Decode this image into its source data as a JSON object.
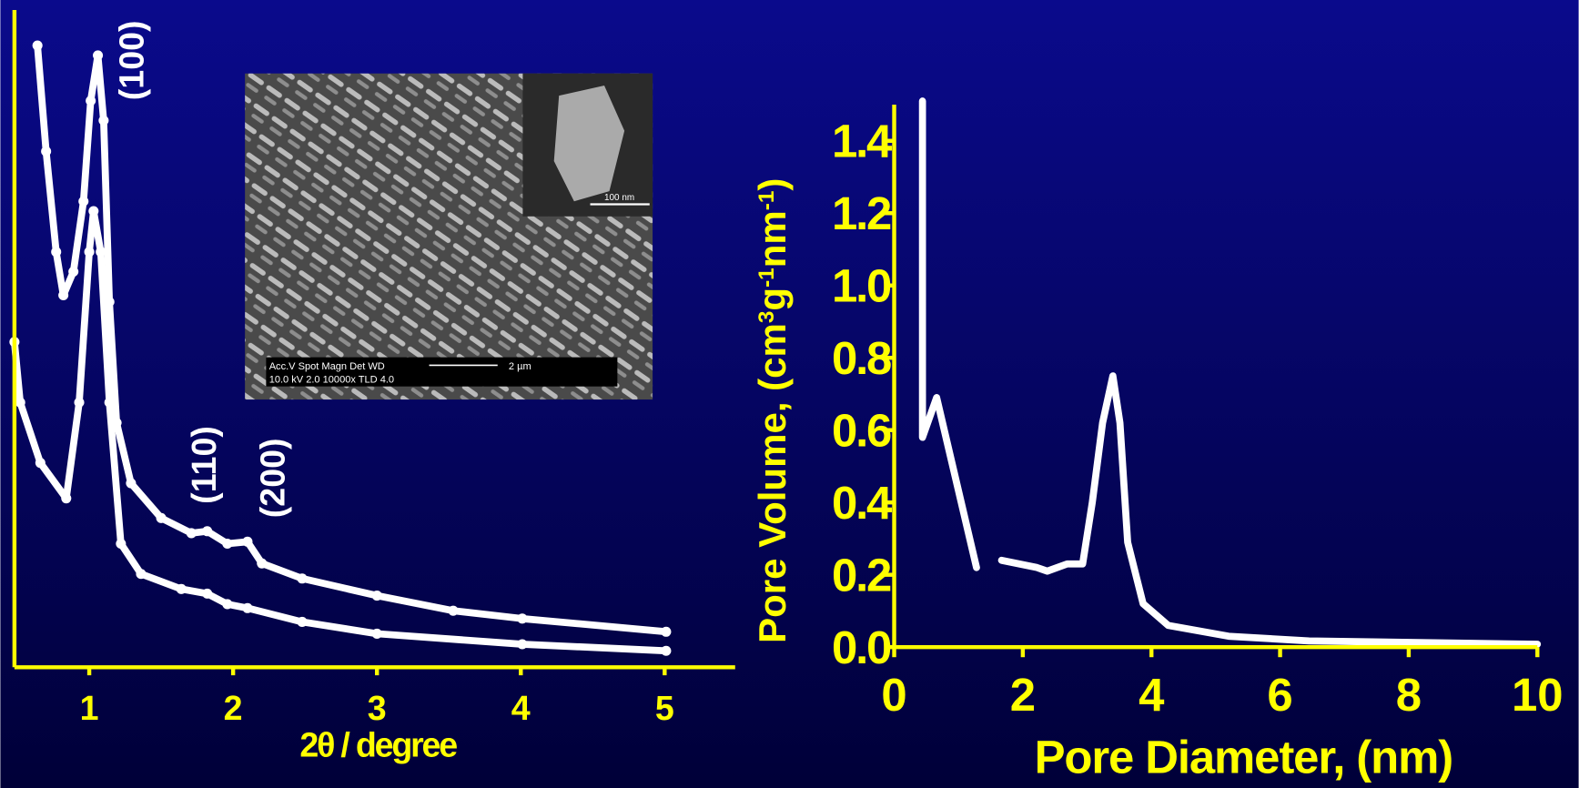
{
  "chart_data": [
    {
      "type": "line",
      "xlabel": "2θ / degree",
      "xlim": [
        0.48,
        5.49
      ],
      "xticks": [
        1,
        2,
        3,
        4,
        5
      ],
      "ylim": [
        0,
        100
      ],
      "annotations": [
        "(100)",
        "(110)",
        "(200)"
      ],
      "inset": {
        "info_line1": "Acc.V  Spot Magn    Det  WD",
        "info_line2": "10.0 kV 2.0  10000x  TLD  4.0",
        "scale_bar": "2 µm",
        "inset_scale_bar": "100 nm"
      },
      "markers": true,
      "series": [
        {
          "color": "#ffffff",
          "x": [
            0.64,
            0.7,
            0.77,
            0.82,
            0.89,
            0.96,
            1.01,
            1.06,
            1.1,
            1.14,
            1.19,
            1.29,
            1.5,
            1.71,
            1.82,
            1.96,
            2.1,
            2.2,
            2.48,
            3.0,
            3.53,
            4.01,
            5.01
          ],
          "values": [
            94.6,
            78.5,
            63.2,
            56.6,
            60.2,
            70.9,
            86.2,
            93.1,
            83.2,
            55.6,
            37.2,
            28.0,
            22.7,
            20.4,
            20.7,
            18.8,
            19.1,
            15.8,
            13.5,
            10.9,
            8.6,
            7.4,
            5.4
          ]
        },
        {
          "color": "#ffffff",
          "x": [
            0.48,
            0.52,
            0.66,
            0.84,
            0.93,
            1.0,
            1.03,
            1.08,
            1.14,
            1.22,
            1.36,
            1.64,
            1.82,
            1.96,
            2.1,
            2.48,
            3.0,
            4.01,
            5.01
          ],
          "values": [
            49.5,
            40.3,
            31.1,
            25.7,
            40.3,
            63.2,
            69.4,
            63.2,
            40.3,
            18.8,
            14.2,
            11.9,
            11.2,
            9.6,
            9.0,
            6.9,
            5.1,
            3.5,
            2.5
          ]
        }
      ]
    },
    {
      "type": "line",
      "xlabel": "Pore Diameter, (nm)",
      "ylabel": [
        "Pore Volume, (cm",
        "3",
        "g",
        "-1",
        "nm",
        "-1",
        ")"
      ],
      "xlim": [
        0,
        10
      ],
      "xticks": [
        0,
        2,
        4,
        6,
        8,
        10
      ],
      "ylim": [
        0,
        1.5
      ],
      "yticks": [
        {
          "value": 0,
          "label": "0.0"
        },
        {
          "value": 0.2,
          "label": "0.2"
        },
        {
          "value": 0.4,
          "label": "0.4"
        },
        {
          "value": 0.6,
          "label": "0.6"
        },
        {
          "value": 0.8,
          "label": "0.8"
        },
        {
          "value": 1.0,
          "label": "1.0"
        },
        {
          "value": 1.2,
          "label": "1.2"
        },
        {
          "value": 1.4,
          "label": "1.4"
        }
      ],
      "markers": false,
      "series": [
        {
          "color": "#ffffff",
          "x": [
            0.44,
            0.44,
            0.66,
            1.28,
            1.5,
            1.67,
            2.22,
            2.38,
            2.69,
            2.93,
            3.08,
            3.24,
            3.4,
            3.51,
            3.63,
            3.87,
            4.26,
            5.2,
            6.45,
            10.0
          ],
          "values": [
            1.51,
            0.58,
            0.69,
            0.22,
            null,
            0.24,
            0.22,
            0.21,
            0.23,
            0.23,
            0.4,
            0.62,
            0.75,
            0.62,
            0.29,
            0.12,
            0.06,
            0.03,
            0.017,
            0.008
          ]
        }
      ]
    }
  ]
}
